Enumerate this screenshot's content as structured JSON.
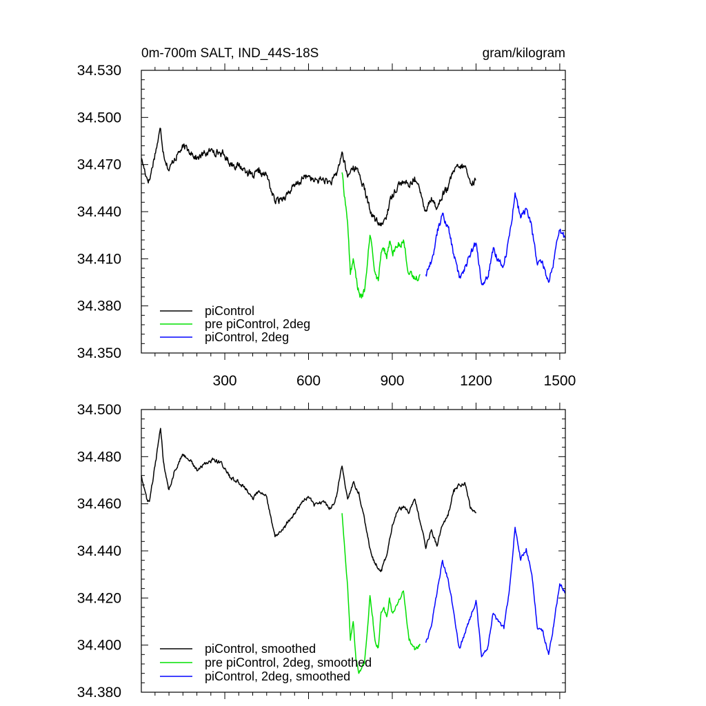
{
  "chart_data": [
    {
      "type": "line",
      "title": "0m-700m SALT, IND_44S-18S",
      "units": "gram/kilogram",
      "xlabel": "",
      "ylabel": "",
      "xlim": [
        1,
        1520
      ],
      "ylim": [
        34.35,
        34.53
      ],
      "xticks": [
        300,
        600,
        900,
        1200,
        1500
      ],
      "yticks": [
        34.35,
        34.38,
        34.41,
        34.44,
        34.47,
        34.5,
        34.53
      ],
      "ytick_labels": [
        "34.350",
        "34.380",
        "34.410",
        "34.440",
        "34.470",
        "34.500",
        "34.530"
      ],
      "legend_position": "bottom-left",
      "series": [
        {
          "name": "piControl",
          "color": "#000000",
          "x": [
            1,
            20,
            30,
            50,
            70,
            80,
            100,
            120,
            150,
            180,
            200,
            230,
            260,
            290,
            320,
            350,
            380,
            400,
            420,
            450,
            480,
            500,
            520,
            550,
            580,
            600,
            620,
            650,
            680,
            700,
            720,
            740,
            760,
            780,
            800,
            820,
            840,
            860,
            880,
            900,
            920,
            940,
            960,
            980,
            1000,
            1020,
            1040,
            1060,
            1080,
            1100,
            1120,
            1140,
            1160,
            1180,
            1200
          ],
          "values": [
            34.474,
            34.462,
            34.46,
            34.477,
            34.493,
            34.478,
            34.466,
            34.474,
            34.481,
            34.478,
            34.474,
            34.477,
            34.479,
            34.477,
            34.471,
            34.469,
            34.466,
            34.462,
            34.465,
            34.463,
            34.446,
            34.448,
            34.451,
            34.456,
            34.461,
            34.463,
            34.459,
            34.461,
            34.458,
            34.463,
            34.478,
            34.462,
            34.469,
            34.465,
            34.454,
            34.441,
            34.434,
            34.431,
            34.438,
            34.451,
            34.457,
            34.459,
            34.456,
            34.462,
            34.452,
            34.441,
            34.449,
            34.442,
            34.451,
            34.455,
            34.466,
            34.468,
            34.469,
            34.458,
            34.46
          ]
        },
        {
          "name": "pre piControl, 2deg",
          "color": "#00e000",
          "x": [
            720,
            740,
            750,
            760,
            770,
            780,
            790,
            800,
            810,
            820,
            830,
            840,
            850,
            860,
            870,
            880,
            890,
            900,
            920,
            940,
            960,
            980,
            1000
          ],
          "values": [
            34.465,
            34.433,
            34.4,
            34.41,
            34.398,
            34.389,
            34.385,
            34.389,
            34.405,
            34.425,
            34.413,
            34.4,
            34.396,
            34.414,
            34.415,
            34.41,
            34.421,
            34.414,
            34.418,
            34.422,
            34.4,
            34.397,
            34.4
          ]
        },
        {
          "name": "piControl, 2deg",
          "color": "#0000ff",
          "x": [
            1020,
            1040,
            1060,
            1080,
            1100,
            1120,
            1140,
            1160,
            1180,
            1200,
            1220,
            1240,
            1260,
            1280,
            1300,
            1320,
            1340,
            1360,
            1380,
            1400,
            1420,
            1440,
            1460,
            1480,
            1500,
            1520
          ],
          "values": [
            34.4,
            34.408,
            34.425,
            34.439,
            34.43,
            34.413,
            34.398,
            34.405,
            34.412,
            34.42,
            34.394,
            34.397,
            34.414,
            34.41,
            34.406,
            34.425,
            34.452,
            34.436,
            34.442,
            34.43,
            34.406,
            34.406,
            34.395,
            34.41,
            34.428,
            34.423
          ]
        }
      ]
    },
    {
      "type": "line",
      "title": "",
      "xlabel": "",
      "ylabel": "",
      "xlim": [
        1,
        1520
      ],
      "ylim": [
        34.38,
        34.5
      ],
      "xticks": [
        300,
        600,
        900,
        1200,
        1500
      ],
      "yticks": [
        34.38,
        34.4,
        34.42,
        34.44,
        34.46,
        34.48,
        34.5
      ],
      "ytick_labels": [
        "34.380",
        "34.400",
        "34.420",
        "34.440",
        "34.460",
        "34.480",
        "34.500"
      ],
      "legend_position": "bottom-left",
      "series": [
        {
          "name": "piControl, smoothed",
          "color": "#000000",
          "x": [
            1,
            20,
            30,
            50,
            70,
            80,
            100,
            120,
            150,
            180,
            200,
            230,
            260,
            290,
            320,
            350,
            380,
            400,
            420,
            450,
            480,
            500,
            520,
            550,
            580,
            600,
            620,
            650,
            680,
            700,
            720,
            740,
            760,
            780,
            800,
            820,
            840,
            860,
            880,
            900,
            920,
            940,
            960,
            980,
            1000,
            1020,
            1040,
            1060,
            1080,
            1100,
            1120,
            1140,
            1160,
            1180,
            1200
          ],
          "values": [
            34.472,
            34.462,
            34.461,
            34.476,
            34.492,
            34.478,
            34.466,
            34.474,
            34.481,
            34.478,
            34.474,
            34.477,
            34.479,
            34.477,
            34.471,
            34.469,
            34.466,
            34.462,
            34.465,
            34.463,
            34.446,
            34.448,
            34.451,
            34.456,
            34.461,
            34.463,
            34.459,
            34.461,
            34.458,
            34.463,
            34.476,
            34.462,
            34.469,
            34.465,
            34.454,
            34.441,
            34.434,
            34.432,
            34.438,
            34.451,
            34.457,
            34.459,
            34.456,
            34.462,
            34.452,
            34.441,
            34.449,
            34.442,
            34.451,
            34.455,
            34.466,
            34.468,
            34.469,
            34.458,
            34.456
          ]
        },
        {
          "name": "pre piControl, 2deg, smoothed",
          "color": "#00e000",
          "x": [
            720,
            740,
            750,
            760,
            770,
            780,
            790,
            800,
            810,
            820,
            830,
            840,
            850,
            860,
            870,
            880,
            890,
            900,
            920,
            940,
            960,
            980,
            1000
          ],
          "values": [
            34.456,
            34.425,
            34.402,
            34.41,
            34.394,
            34.388,
            34.39,
            34.392,
            34.405,
            34.421,
            34.412,
            34.401,
            34.399,
            34.414,
            34.416,
            34.412,
            34.42,
            34.414,
            34.418,
            34.423,
            34.402,
            34.398,
            34.4
          ]
        },
        {
          "name": "piControl, 2deg, smoothed",
          "color": "#0000ff",
          "x": [
            1020,
            1040,
            1060,
            1080,
            1100,
            1120,
            1140,
            1160,
            1180,
            1200,
            1220,
            1240,
            1260,
            1280,
            1300,
            1320,
            1340,
            1360,
            1380,
            1400,
            1420,
            1440,
            1460,
            1480,
            1500,
            1520
          ],
          "values": [
            34.401,
            34.408,
            34.422,
            34.436,
            34.428,
            34.414,
            34.399,
            34.405,
            34.412,
            34.419,
            34.395,
            34.398,
            34.413,
            34.41,
            34.407,
            34.424,
            34.45,
            34.436,
            34.441,
            34.43,
            34.407,
            34.406,
            34.396,
            34.41,
            34.426,
            34.422
          ]
        }
      ]
    }
  ]
}
